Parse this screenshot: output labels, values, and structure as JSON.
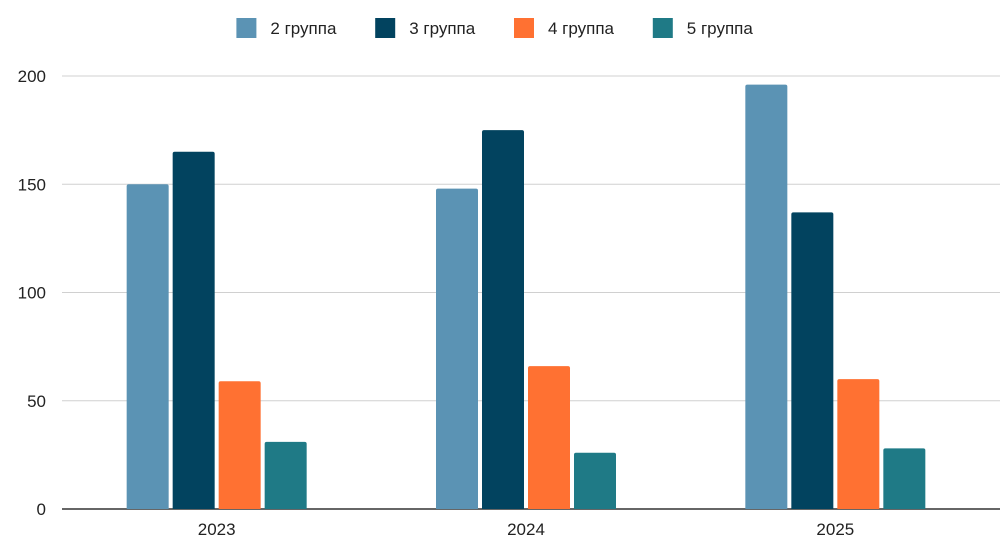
{
  "chart_data": {
    "type": "bar",
    "categories": [
      "2023",
      "2024",
      "2025"
    ],
    "series": [
      {
        "name": "2 группа",
        "color": "#5b93b4",
        "values": [
          150,
          148,
          196
        ]
      },
      {
        "name": "3 группа",
        "color": "#02435f",
        "values": [
          165,
          175,
          137
        ]
      },
      {
        "name": "4 группа",
        "color": "#ff7132",
        "values": [
          59,
          66,
          60
        ]
      },
      {
        "name": "5 группа",
        "color": "#1f7a86",
        "values": [
          31,
          26,
          28
        ]
      }
    ],
    "y_ticks": [
      "0",
      "50",
      "100",
      "150",
      "200"
    ],
    "ylim": [
      0,
      200
    ],
    "grid": true,
    "legend_position": "top-center",
    "title": "",
    "xlabel": "",
    "ylabel": ""
  }
}
